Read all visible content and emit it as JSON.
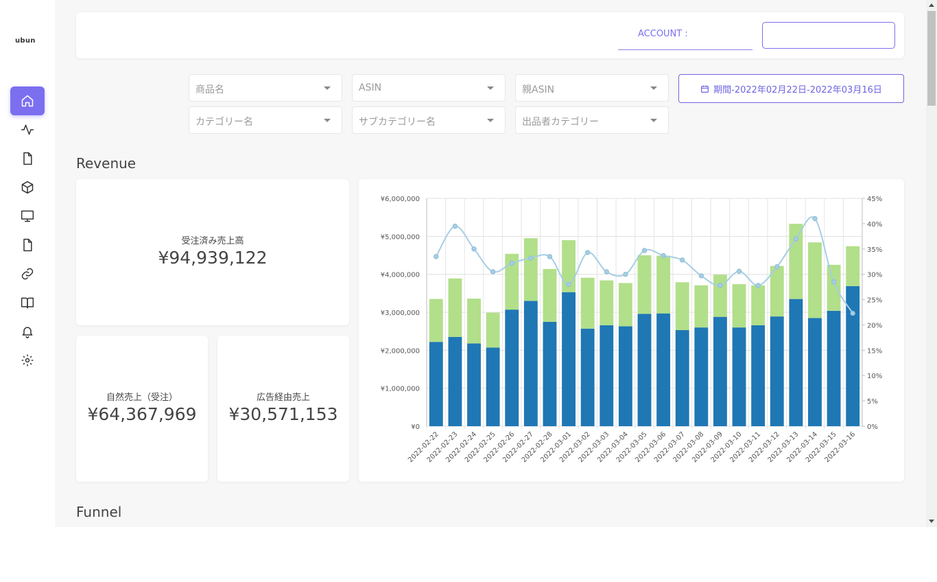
{
  "app": {
    "logo": "ubun"
  },
  "sidebar": {
    "items": [
      {
        "icon": "home-icon",
        "active": true
      },
      {
        "icon": "activity-icon"
      },
      {
        "icon": "file-icon"
      },
      {
        "icon": "box-icon"
      },
      {
        "icon": "monitor-icon"
      },
      {
        "icon": "file-text-icon"
      },
      {
        "icon": "link-icon"
      },
      {
        "icon": "book-icon"
      },
      {
        "icon": "bell-icon"
      },
      {
        "icon": "settings-icon"
      }
    ]
  },
  "header": {
    "account_label": "ACCOUNT :",
    "account_value": ""
  },
  "filters": {
    "product_name": "商品名",
    "asin": "ASIN",
    "parent_asin": "親ASIN",
    "category": "カテゴリー名",
    "subcategory": "サブカテゴリー名",
    "seller_category": "出品者カテゴリー",
    "date_range": "期間-2022年02月22日-2022年03月16日"
  },
  "revenue": {
    "title": "Revenue",
    "total_label": "受注済み売上高",
    "total_value": "¥94,939,122",
    "organic_label": "自然売上（受注）",
    "organic_value": "¥64,367,969",
    "ad_label": "広告経由売上",
    "ad_value": "¥30,571,153"
  },
  "funnel": {
    "title": "Funnel"
  },
  "colors": {
    "accent": "#7b6ff0",
    "bar_bottom": "#1f77b4",
    "bar_top": "#b2df8a",
    "line": "#a6cee3"
  },
  "chart_data": {
    "type": "bar",
    "stacked": true,
    "categories": [
      "2022-02-22",
      "2022-02-23",
      "2022-02-24",
      "2022-02-25",
      "2022-02-26",
      "2022-02-27",
      "2022-02-28",
      "2022-03-01",
      "2022-03-02",
      "2022-03-03",
      "2022-03-04",
      "2022-03-05",
      "2022-03-06",
      "2022-03-07",
      "2022-03-08",
      "2022-03-09",
      "2022-03-10",
      "2022-03-11",
      "2022-03-12",
      "2022-03-13",
      "2022-03-14",
      "2022-03-15",
      "2022-03-16"
    ],
    "series": [
      {
        "values": [
          2220000,
          2350000,
          2180000,
          2070000,
          3070000,
          3300000,
          2750000,
          3530000,
          2570000,
          2660000,
          2630000,
          2960000,
          2970000,
          2530000,
          2600000,
          2880000,
          2600000,
          2660000,
          2890000,
          3350000,
          2850000,
          3040000,
          3690000
        ]
      },
      {
        "values": [
          1130000,
          1540000,
          1180000,
          920000,
          1470000,
          1650000,
          1390000,
          1370000,
          1340000,
          1180000,
          1140000,
          1540000,
          1520000,
          1260000,
          1110000,
          1110000,
          1140000,
          1050000,
          1330000,
          1980000,
          1990000,
          1210000,
          1050000
        ]
      },
      {
        "type": "line",
        "axis": "right",
        "values": [
          33.5,
          39.5,
          35,
          30.5,
          32.2,
          33.2,
          33.5,
          28,
          34.3,
          30.5,
          30,
          34.7,
          33.7,
          32.8,
          29.7,
          27.8,
          30.6,
          27.8,
          31.5,
          37,
          41,
          28.5,
          22.3
        ]
      }
    ],
    "y_left": {
      "ylim": [
        0,
        6000000
      ],
      "ticks": [
        "¥0",
        "¥1,000,000",
        "¥2,000,000",
        "¥3,000,000",
        "¥4,000,000",
        "¥5,000,000",
        "¥6,000,000"
      ]
    },
    "y_right": {
      "ylim": [
        0,
        45
      ],
      "ticks": [
        "0%",
        "5%",
        "10%",
        "15%",
        "20%",
        "25%",
        "30%",
        "35%",
        "40%",
        "45%"
      ]
    },
    "grid": true
  }
}
